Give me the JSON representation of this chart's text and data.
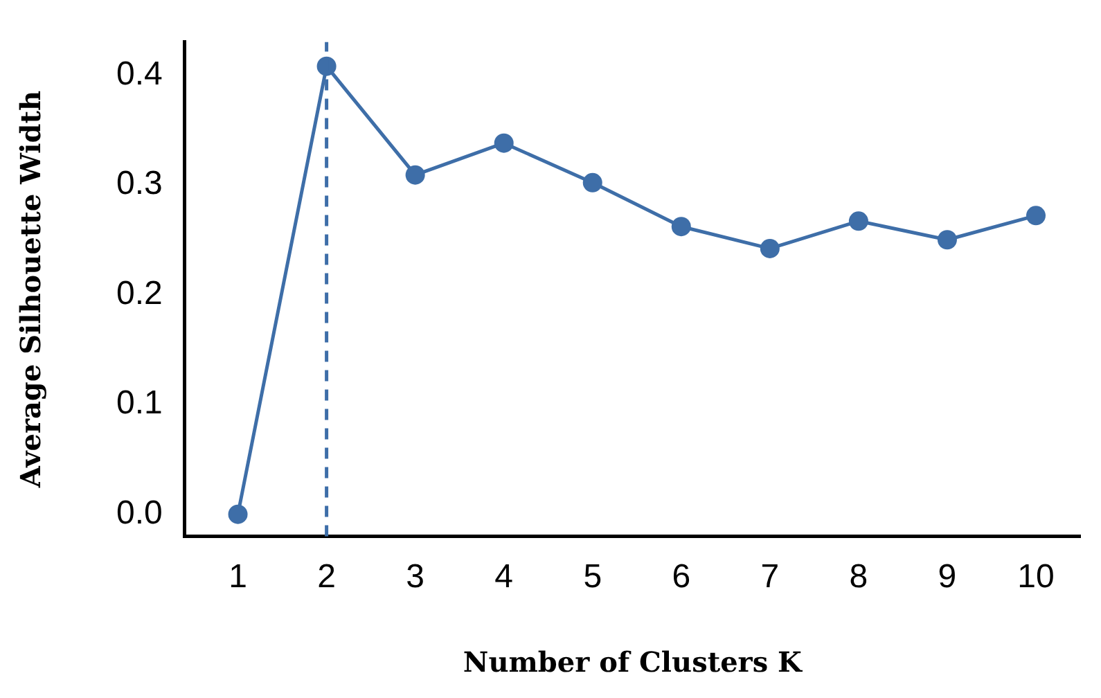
{
  "chart_data": {
    "type": "line",
    "xlabel": "Number of Clusters K",
    "ylabel": "Average Silhouette Width",
    "x": [
      1,
      2,
      3,
      4,
      5,
      6,
      7,
      8,
      9,
      10
    ],
    "series": [
      {
        "color": "#3e6ea8",
        "values": [
          0.0,
          0.408,
          0.309,
          0.338,
          0.302,
          0.262,
          0.242,
          0.267,
          0.25,
          0.272
        ]
      }
    ],
    "xlim": [
      0.4,
      10.5
    ],
    "xticks": [
      1,
      2,
      3,
      4,
      5,
      6,
      7,
      8,
      9,
      10
    ],
    "ylim": [
      -0.02,
      0.43
    ],
    "yticks": [
      {
        "value": 0,
        "label": "0.0"
      },
      0.1,
      0.2,
      0.3,
      0.4
    ],
    "ref_lines": [
      {
        "axis": "x",
        "value": 2,
        "color": "#3e6ea8",
        "line_style": "dashed"
      }
    ],
    "grid": false,
    "legend": false,
    "marker": "circle",
    "line_style": "solid"
  }
}
